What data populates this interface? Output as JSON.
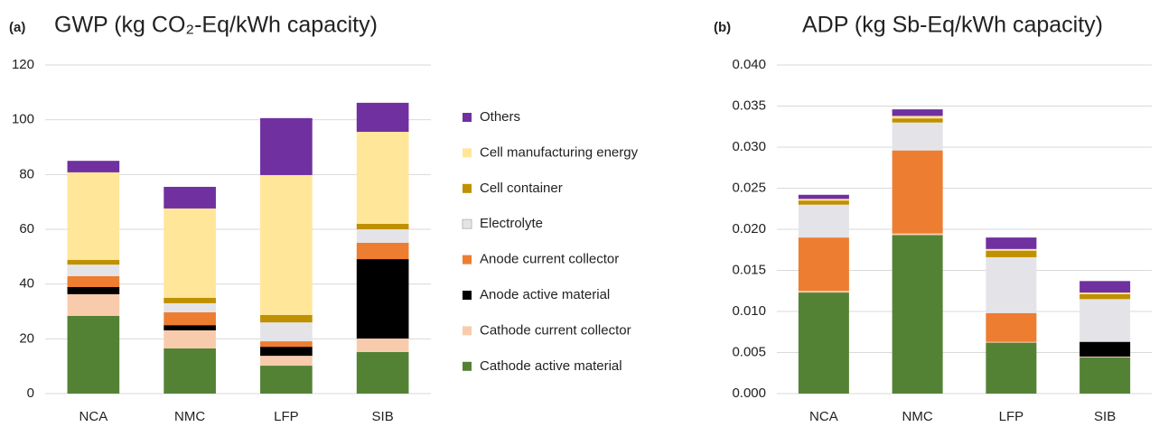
{
  "chart_data": [
    {
      "type": "bar",
      "stacked": true,
      "panel_label": "(a)",
      "title": "GWP (kg CO₂-Eq/kWh capacity)",
      "categories": [
        "NCA",
        "NMC",
        "LFP",
        "SIB"
      ],
      "ylim": [
        0,
        120
      ],
      "yticks": [
        0,
        20,
        40,
        60,
        80,
        100,
        120
      ],
      "grid": true,
      "legend": "right",
      "series": [
        {
          "name": "Cathode active material",
          "color": "#548235",
          "values": [
            28.4,
            16.5,
            10.2,
            15.2
          ]
        },
        {
          "name": "Cathode current collector",
          "color": "#f8cbad",
          "values": [
            7.9,
            6.6,
            3.6,
            4.9
          ]
        },
        {
          "name": "Anode active material",
          "color": "#000000",
          "values": [
            2.6,
            1.9,
            3.3,
            29.0
          ]
        },
        {
          "name": "Anode current collector",
          "color": "#ed7d31",
          "values": [
            4.0,
            4.7,
            2.0,
            6.0
          ]
        },
        {
          "name": "Electrolyte",
          "color": "#e4e4e8",
          "values": [
            4.2,
            3.3,
            6.9,
            4.9
          ]
        },
        {
          "name": "Cell container",
          "color": "#bf9000",
          "values": [
            1.7,
            2.0,
            2.7,
            2.0
          ]
        },
        {
          "name": "Cell manufacturing energy",
          "color": "#ffe699",
          "values": [
            32.0,
            32.6,
            51.1,
            33.6
          ]
        },
        {
          "name": "Others",
          "color": "#7030a0",
          "values": [
            4.2,
            7.9,
            20.8,
            10.6
          ]
        }
      ]
    },
    {
      "type": "bar",
      "stacked": true,
      "panel_label": "(b)",
      "title": "ADP (kg Sb-Eq/kWh capacity)",
      "categories": [
        "NCA",
        "NMC",
        "LFP",
        "SIB"
      ],
      "ylim": [
        0,
        0.04
      ],
      "yticks": [
        {
          "value": 0,
          "label": "0.000"
        },
        {
          "value": 0.005,
          "label": "0.005"
        },
        {
          "value": 0.01,
          "label": "0.010"
        },
        {
          "value": 0.015,
          "label": "0.015"
        },
        {
          "value": 0.02,
          "label": "0.020"
        },
        {
          "value": 0.025,
          "label": "0.025"
        },
        {
          "value": 0.03,
          "label": "0.030"
        },
        {
          "value": 0.035,
          "label": "0.035"
        },
        {
          "value": 0.04,
          "label": "0.040"
        }
      ],
      "grid": true,
      "series": [
        {
          "color": "#548235",
          "values": [
            0.0123,
            0.0193,
            0.0062,
            0.0044
          ]
        },
        {
          "color": "#f8cbad",
          "values": [
            0.0002,
            0.0002,
            0.0001,
            0.0001
          ]
        },
        {
          "color": "#000000",
          "values": [
            0,
            0,
            0,
            0.0018
          ]
        },
        {
          "color": "#ed7d31",
          "values": [
            0.0065,
            0.0101,
            0.0035,
            0
          ]
        },
        {
          "color": "#e4e4e8",
          "values": [
            0.004,
            0.0034,
            0.0068,
            0.0052
          ]
        },
        {
          "color": "#bf9000",
          "values": [
            0.0005,
            0.0005,
            0.0008,
            0.0006
          ]
        },
        {
          "color": "#ffe699",
          "values": [
            0.0002,
            0.0003,
            0.0002,
            0.0002
          ]
        },
        {
          "color": "#7030a0",
          "values": [
            0.0005,
            0.0008,
            0.0014,
            0.0014
          ]
        }
      ]
    }
  ]
}
